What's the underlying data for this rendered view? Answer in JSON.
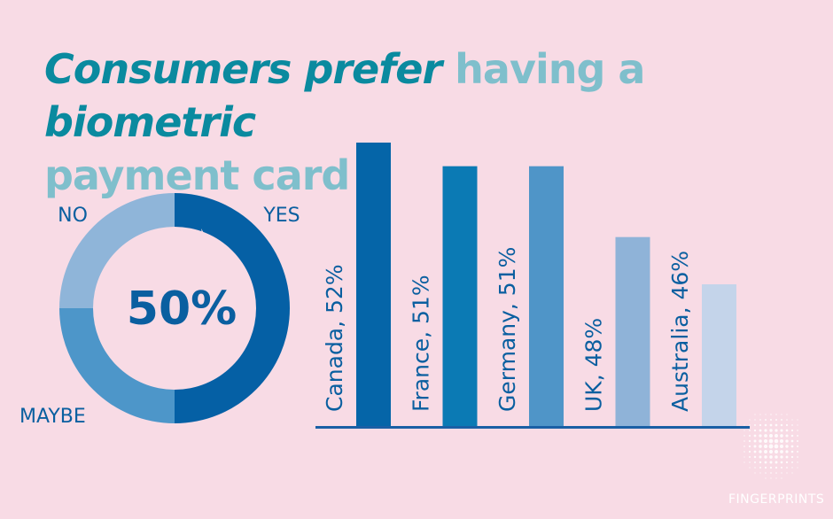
{
  "headline": {
    "part1": "Consumers prefer",
    "part2": " having a ",
    "part3": "biometric",
    "part4": "payment card"
  },
  "colors": {
    "background": "#f8dbe5",
    "title_emphasis": "#0a8a9f",
    "title_light": "#7fbfcc",
    "yes": "#0560a5",
    "maybe": "#4d96c9",
    "no": "#8fb5d9",
    "axis": "#1a5fa5"
  },
  "logo": {
    "text": "FINGERPRINTS",
    "icon": "fingerprint-dots-icon"
  },
  "chart_data": [
    {
      "type": "pie",
      "variant": "donut",
      "center_label": "50%",
      "segments": [
        {
          "label": "YES",
          "value": 50,
          "color": "#0560a5"
        },
        {
          "label": "MAYBE",
          "value": 25,
          "color": "#4d96c9"
        },
        {
          "label": "NO",
          "value": 25,
          "color": "#8fb5d9"
        }
      ]
    },
    {
      "type": "bar",
      "categories": [
        "Canada",
        "France",
        "Germany",
        "UK",
        "Australia"
      ],
      "values": [
        52,
        51,
        51,
        48,
        46
      ],
      "labels": [
        "Canada, 52%",
        "France, 51%",
        "Germany, 51%",
        "UK, 48%",
        "Australia, 46%"
      ],
      "colors": [
        "#0565a8",
        "#0b7ab4",
        "#4f95c8",
        "#8fb3d8",
        "#c4d4ea"
      ],
      "ylim": [
        0,
        52
      ],
      "grid": false
    }
  ]
}
